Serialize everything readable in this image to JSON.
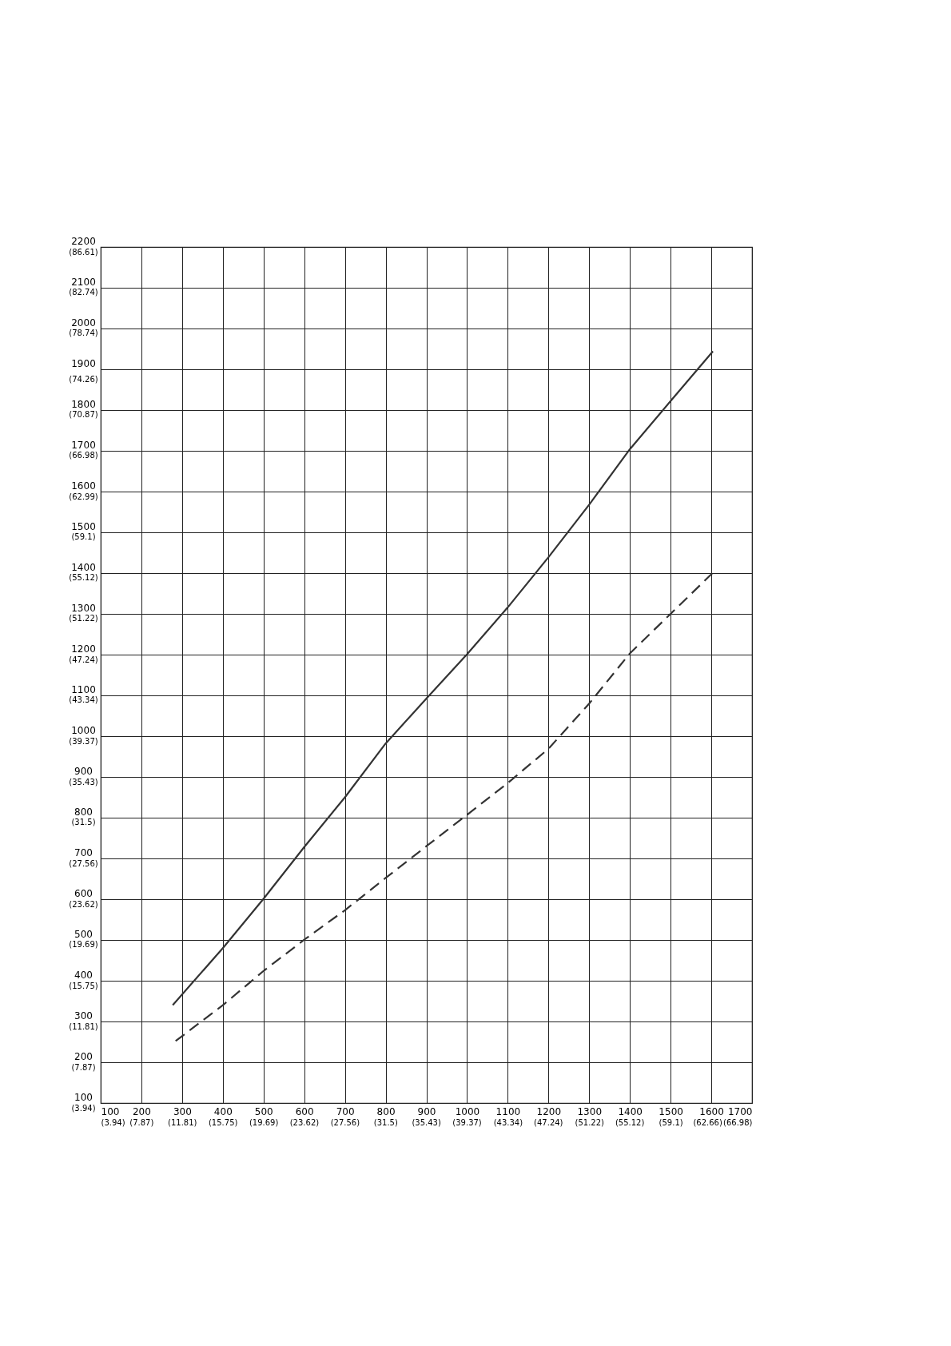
{
  "chart_data": {
    "type": "line",
    "marker": "none",
    "grid": true,
    "xlim": [
      100,
      1700
    ],
    "ylim": [
      100,
      2200
    ],
    "xticks": [
      100,
      200,
      300,
      400,
      500,
      600,
      700,
      800,
      900,
      1000,
      1100,
      1200,
      1300,
      1400,
      1500,
      1600,
      1700
    ],
    "yticks": [
      100,
      200,
      300,
      400,
      500,
      600,
      700,
      800,
      900,
      1000,
      1100,
      1200,
      1300,
      1400,
      1500,
      1600,
      1700,
      1800,
      1900,
      2000,
      2100,
      2200
    ],
    "x2lim": [
      3.94,
      66.98
    ],
    "x2ticks": [
      {
        "value": 3.94,
        "label": "(3.94)"
      },
      {
        "value": 7.87,
        "label": "(7.87)"
      },
      {
        "value": 11.81,
        "label": "(11.81)"
      },
      {
        "value": 15.75,
        "label": "(15.75)"
      },
      {
        "value": 19.69,
        "label": "(19.69)"
      },
      {
        "value": 23.62,
        "label": "(23.62)"
      },
      {
        "value": 27.56,
        "label": "(27.56)"
      },
      {
        "value": 31.5,
        "label": "(31.5)"
      },
      {
        "value": 35.43,
        "label": "(35.43)"
      },
      {
        "value": 39.37,
        "label": "(39.37)"
      },
      {
        "value": 43.34,
        "label": "(43.34)"
      },
      {
        "value": 47.24,
        "label": "(47.24)"
      },
      {
        "value": 51.22,
        "label": "(51.22)"
      },
      {
        "value": 55.12,
        "label": "(55.12)"
      },
      {
        "value": 59.1,
        "label": "(59.1)"
      },
      {
        "value": 62.66,
        "label": "(62.66)"
      },
      {
        "value": 66.98,
        "label": "(66.98)"
      }
    ],
    "y2lim": [
      3.94,
      86.61
    ],
    "y2ticks": [
      {
        "value": 3.94,
        "label": "(3.94)"
      },
      {
        "value": 7.87,
        "label": "(7.87)"
      },
      {
        "value": 11.81,
        "label": "(11.81)"
      },
      {
        "value": 15.75,
        "label": "(15.75)"
      },
      {
        "value": 19.69,
        "label": "(19.69)"
      },
      {
        "value": 23.62,
        "label": "(23.62)"
      },
      {
        "value": 27.56,
        "label": "(27.56)"
      },
      {
        "value": 31.5,
        "label": "(31.5)"
      },
      {
        "value": 35.43,
        "label": "(35.43)"
      },
      {
        "value": 39.37,
        "label": "(39.37)"
      },
      {
        "value": 43.34,
        "label": "(43.34)"
      },
      {
        "value": 47.24,
        "label": "(47.24)"
      },
      {
        "value": 51.22,
        "label": "(51.22)"
      },
      {
        "value": 55.12,
        "label": "(55.12)"
      },
      {
        "value": 59.1,
        "label": "(59.1)"
      },
      {
        "value": 62.99,
        "label": "(62.99)"
      },
      {
        "value": 66.98,
        "label": "(66.98)"
      },
      {
        "value": 70.87,
        "label": "(70.87)"
      },
      {
        "value": 74.26,
        "label": "(74.26)"
      },
      {
        "value": 78.74,
        "label": "(78.74)"
      },
      {
        "value": 82.74,
        "label": "(82.74)"
      },
      {
        "value": 86.61,
        "label": "(86.61)"
      }
    ],
    "series": [
      {
        "color": "#333333",
        "line_style": "solid",
        "x": [
          277,
          400,
          500,
          600,
          700,
          800,
          900,
          1000,
          1100,
          1200,
          1300,
          1400,
          1500,
          1604
        ],
        "values": [
          340,
          480,
          601,
          728,
          850,
          982,
          1092,
          1201,
          1316,
          1439,
          1568,
          1704,
          1822,
          1944
        ]
      },
      {
        "color": "#333333",
        "line_style": "dashed",
        "x": [
          284,
          400,
          500,
          602,
          700,
          800,
          900,
          1000,
          1100,
          1200,
          1300,
          1400,
          1500,
          1602
        ],
        "values": [
          252,
          340,
          424,
          502,
          573,
          652,
          730,
          807,
          885,
          969,
          1080,
          1203,
          1300,
          1399
        ]
      }
    ]
  }
}
